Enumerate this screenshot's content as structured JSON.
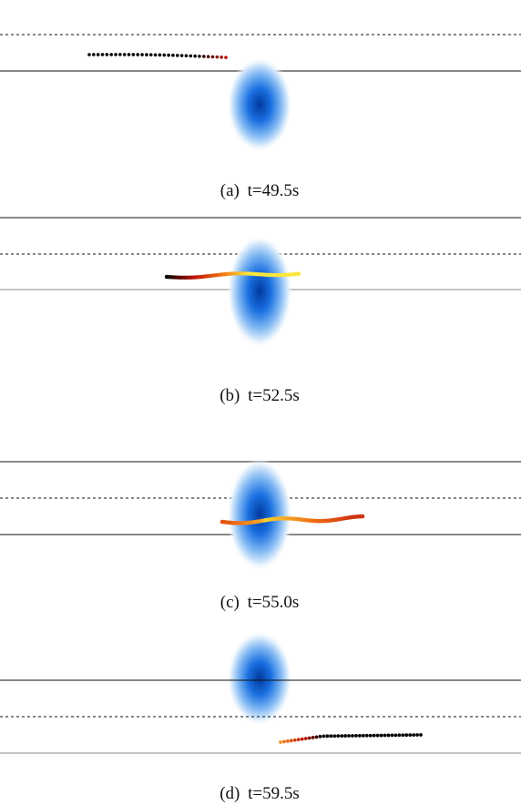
{
  "panels": [
    {
      "label": "(a)",
      "caption": "t=49.5s"
    },
    {
      "label": "(b)",
      "caption": "t=52.5s"
    },
    {
      "label": "(c)",
      "caption": "t=55.0s"
    },
    {
      "label": "(d)",
      "caption": "t=59.5s"
    }
  ]
}
